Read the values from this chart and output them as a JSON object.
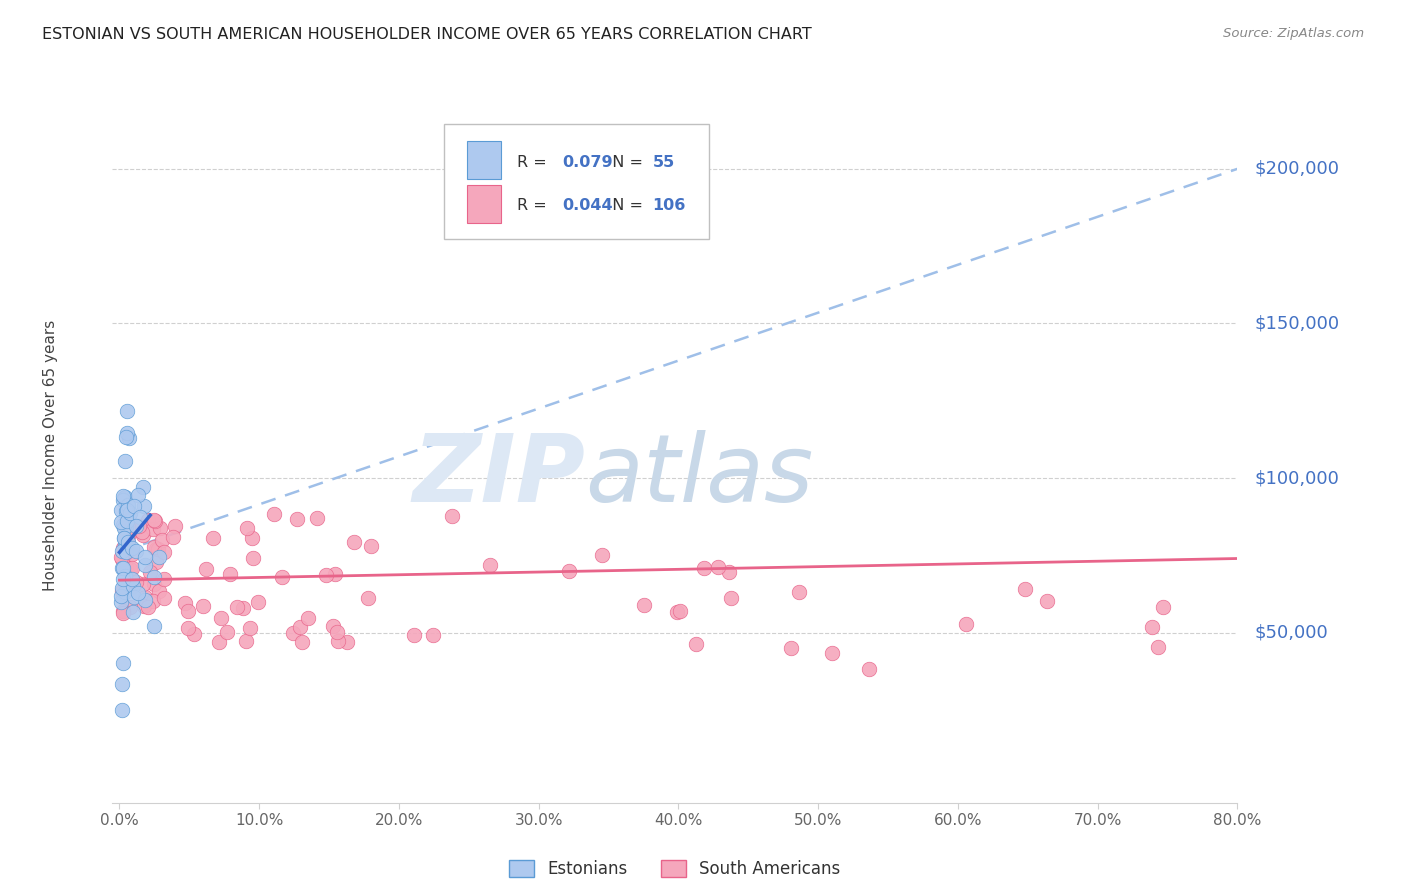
{
  "title": "ESTONIAN VS SOUTH AMERICAN HOUSEHOLDER INCOME OVER 65 YEARS CORRELATION CHART",
  "source": "Source: ZipAtlas.com",
  "ylabel": "Householder Income Over 65 years",
  "ytick_labels": [
    "$50,000",
    "$100,000",
    "$150,000",
    "$200,000"
  ],
  "ytick_values": [
    50000,
    100000,
    150000,
    200000
  ],
  "ymax": 220000,
  "ymin": -5000,
  "xmax": 0.8,
  "xmin": -0.005,
  "watermark_zip": "ZIP",
  "watermark_atlas": "atlas",
  "legend_blue_R": "0.079",
  "legend_blue_N": "55",
  "legend_pink_R": "0.044",
  "legend_pink_N": "106",
  "blue_scatter_color": "#aec9ef",
  "blue_edge_color": "#5b9bd5",
  "blue_line_color": "#3366cc",
  "blue_dashed_color": "#9fbfe8",
  "pink_scatter_color": "#f5a7bc",
  "pink_edge_color": "#e8648a",
  "pink_line_color": "#e8648a",
  "ylabel_color": "#4472c4",
  "title_color": "#222222",
  "grid_color": "#d0d0d0",
  "tick_color": "#666666",
  "background_color": "#ffffff",
  "legend_text_color": "#333333",
  "legend_num_color": "#4472c4",
  "source_color": "#888888"
}
